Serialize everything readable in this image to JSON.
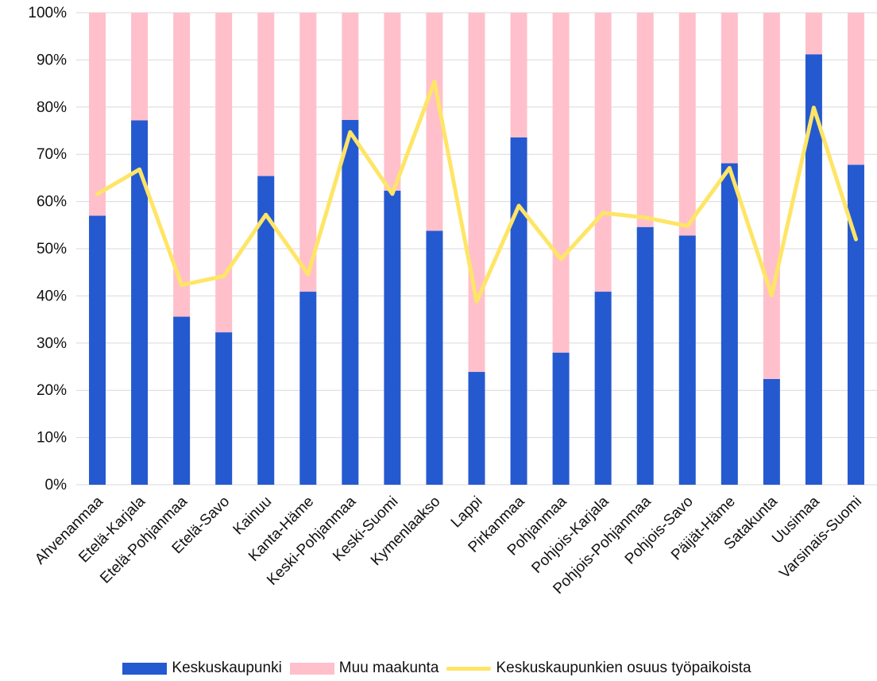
{
  "chart_data": {
    "type": "bar",
    "stacked": true,
    "categories": [
      "Ahvenanmaa",
      "Etelä-Karjala",
      "Etelä-Pohjanmaa",
      "Etelä-Savo",
      "Kainuu",
      "Kanta-Häme",
      "Keski-Pohjanmaa",
      "Keski-Suomi",
      "Kymenlaakso",
      "Lappi",
      "Pirkanmaa",
      "Pohjanmaa",
      "Pohjois-Karjala",
      "Pohjois-Pohjanmaa",
      "Pohjois-Savo",
      "Päijät-Häme",
      "Satakunta",
      "Uusimaa",
      "Varsinais-Suomi"
    ],
    "series": [
      {
        "name": "Keskuskaupunki",
        "kind": "bar",
        "color": "#2559d0",
        "values": [
          57,
          77.2,
          35.6,
          32.3,
          65.4,
          40.9,
          77.3,
          62.3,
          53.8,
          23.9,
          73.6,
          28,
          40.9,
          54.6,
          52.8,
          68.1,
          22.4,
          91.2,
          67.8
        ]
      },
      {
        "name": "Muu maakunta",
        "kind": "bar",
        "color": "#ffc0cb",
        "values": [
          43,
          22.8,
          64.4,
          67.7,
          34.6,
          59.1,
          22.7,
          37.7,
          46.2,
          76.1,
          26.4,
          72,
          59.1,
          45.4,
          47.2,
          31.9,
          77.6,
          8.8,
          32.2
        ]
      },
      {
        "name": "Keskuskaupunkien osuus työpaikoista",
        "kind": "line",
        "color": "#ffe566",
        "values": [
          61.6,
          66.8,
          42.3,
          44.2,
          57.2,
          44.6,
          74.7,
          61.6,
          85.4,
          38.8,
          59.1,
          47.8,
          57.6,
          56.6,
          54.8,
          67.1,
          40.1,
          79.9,
          52
        ]
      }
    ],
    "ylim": [
      0,
      100
    ],
    "yticks": [
      "0%",
      "10%",
      "20%",
      "30%",
      "40%",
      "50%",
      "60%",
      "70%",
      "80%",
      "90%",
      "100%"
    ],
    "grid": true,
    "legend_position": "bottom"
  }
}
